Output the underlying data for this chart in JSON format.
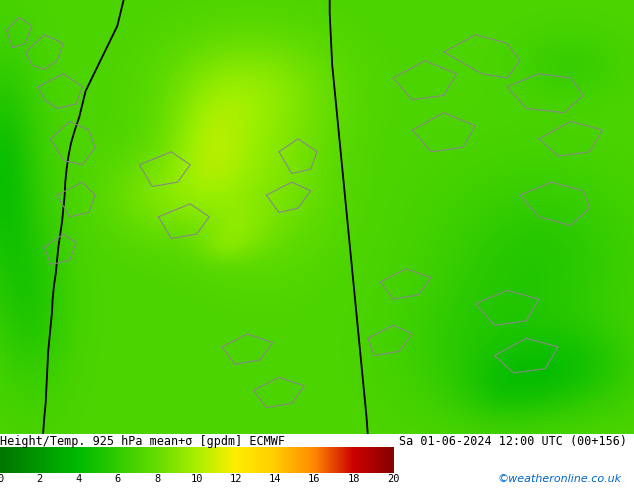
{
  "title_text": "Height/Temp. 925 hPa mean+σ [gpdm] ECMWF",
  "date_text": "Sa 01-06-2024 12:00 UTC (00+156)",
  "credit_text": "©weatheronline.co.uk",
  "colorbar_colors": [
    "#008000",
    "#00a000",
    "#00c000",
    "#40d000",
    "#80e000",
    "#aaee00",
    "#ccee00",
    "#ffee00",
    "#ffcc00",
    "#ff9900",
    "#ff6600",
    "#ff3300",
    "#cc0000",
    "#990000"
  ],
  "colorbar_tick_values": [
    0,
    2,
    4,
    6,
    8,
    10,
    12,
    14,
    16,
    18,
    20
  ],
  "fig_width": 6.34,
  "fig_height": 4.9,
  "title_fontsize": 8.5,
  "credit_color": "#0066cc"
}
